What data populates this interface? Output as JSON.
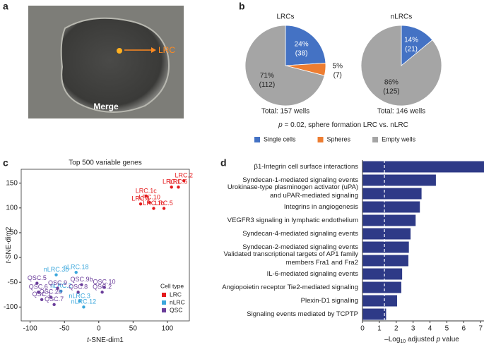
{
  "panels": {
    "a": "a",
    "b": "b",
    "c": "c",
    "d": "d"
  },
  "image": {
    "arrow_label": "LRC",
    "caption": "Merge"
  },
  "chart_data": [
    {
      "type": "pie",
      "legend": [
        {
          "name": "Single cells",
          "color": "#4472c4"
        },
        {
          "name": "Spheres",
          "color": "#ed7d31"
        },
        {
          "name": "Empty wells",
          "color": "#a5a5a5"
        }
      ],
      "note": [
        "p",
        " = 0.02, sphere formation LRC vs. nLRC"
      ],
      "pies": [
        {
          "title": "LRCs",
          "values": [
            24,
            5,
            71
          ],
          "value_labels": [
            "24%",
            "5%",
            "71%"
          ],
          "counts": [
            38,
            7,
            112
          ],
          "count_labels": [
            "(38)",
            "(7)",
            "(112)"
          ],
          "colors": [
            "#4472c4",
            "#ed7d31",
            "#a5a5a5"
          ],
          "total": "Total: 157 wells"
        },
        {
          "title": "nLRCs",
          "values": [
            14,
            86
          ],
          "value_labels": [
            "14%",
            "86%"
          ],
          "counts": [
            21,
            125
          ],
          "count_labels": [
            "(21)",
            "(125)"
          ],
          "colors": [
            "#4472c4",
            "#a5a5a5"
          ],
          "total": "Total: 146 wells"
        }
      ]
    },
    {
      "type": "scatter",
      "title": "Top 500 variable genes",
      "x_label": [
        "t",
        "-SNE-dim1"
      ],
      "y_label": [
        "t",
        "-SNE-dim2"
      ],
      "xlim": [
        -113,
        132
      ],
      "ylim": [
        -128,
        178
      ],
      "xticks": [
        -100,
        -50,
        0,
        50,
        100
      ],
      "yticks": [
        -100,
        -50,
        0,
        50,
        100,
        150
      ],
      "legend_title": "Cell type",
      "legend": "lower right",
      "series": [
        {
          "name": "LRC",
          "color": "#e41a1c",
          "labels": [
            "LRC.2",
            "LRC.6",
            "LRC.1",
            "LRC.1c",
            "LRC.10",
            "LRC.4",
            "LRC.1b",
            "LRC.5"
          ],
          "x": [
            124,
            116,
            106,
            69,
            74,
            61,
            80,
            95
          ],
          "values": [
            155,
            142,
            142,
            124,
            111,
            108,
            99,
            99
          ]
        },
        {
          "name": "nLRC",
          "color": "#3ba7dc",
          "labels": [
            "nLRC.3b",
            "nLRC.18",
            "nLRC.2",
            "nLRC.3",
            "nLRC.12"
          ],
          "x": [
            -62,
            -33,
            -55,
            -28,
            -22
          ],
          "values": [
            -35,
            -30,
            -68,
            -88,
            -100
          ]
        },
        {
          "name": "QSC",
          "color": "#6a3d9a",
          "labels": [
            "QSC.5",
            "QSC.6",
            "QSC.9",
            "QSC.9b",
            "QSC.8",
            "QSC.2b",
            "QSC.1",
            "QSC.7",
            "QSC.2",
            "QSC.10"
          ],
          "x": [
            -90,
            -88,
            -60,
            -25,
            -30,
            -70,
            -83,
            -65,
            5,
            8
          ],
          "values": [
            -52,
            -70,
            -62,
            -55,
            -70,
            -80,
            -85,
            -95,
            -70,
            -60
          ]
        }
      ]
    },
    {
      "type": "barh",
      "color": "#2e3a87",
      "threshold": 1.3,
      "x_label": [
        "–Log",
        "10",
        " adjusted ",
        "p",
        " value"
      ],
      "xlim": [
        0,
        7.2
      ],
      "xticks": [
        0,
        1,
        2,
        3,
        4,
        5,
        6,
        7
      ],
      "categories": [
        [
          "β1-Integrin cell surface interactions"
        ],
        [
          "Syndecan-1-mediated signaling events"
        ],
        [
          "Urokinase-type plasminogen activator (uPA)",
          "and uPAR-mediated signaling"
        ],
        [
          "Integrins in angiogenesis"
        ],
        [
          "VEGFR3 signaling in lymphatic endothelium"
        ],
        [
          "Syndecan-4-mediated signaling events"
        ],
        [
          "Syndecan-2-mediated signaling events"
        ],
        [
          "Validated transcriptional targets of AP1 family",
          "members Fra1 and Fra2"
        ],
        [
          "IL-6-mediated signaling events"
        ],
        [
          "Angiopoietin receptor Tie2-mediated signaling"
        ],
        [
          "Plexin-D1 signaling"
        ],
        [
          "Signaling events mediated by TCPTP"
        ]
      ],
      "values": [
        7.2,
        4.35,
        3.5,
        3.4,
        3.15,
        2.85,
        2.75,
        2.72,
        2.35,
        2.3,
        2.05,
        1.4
      ]
    }
  ]
}
